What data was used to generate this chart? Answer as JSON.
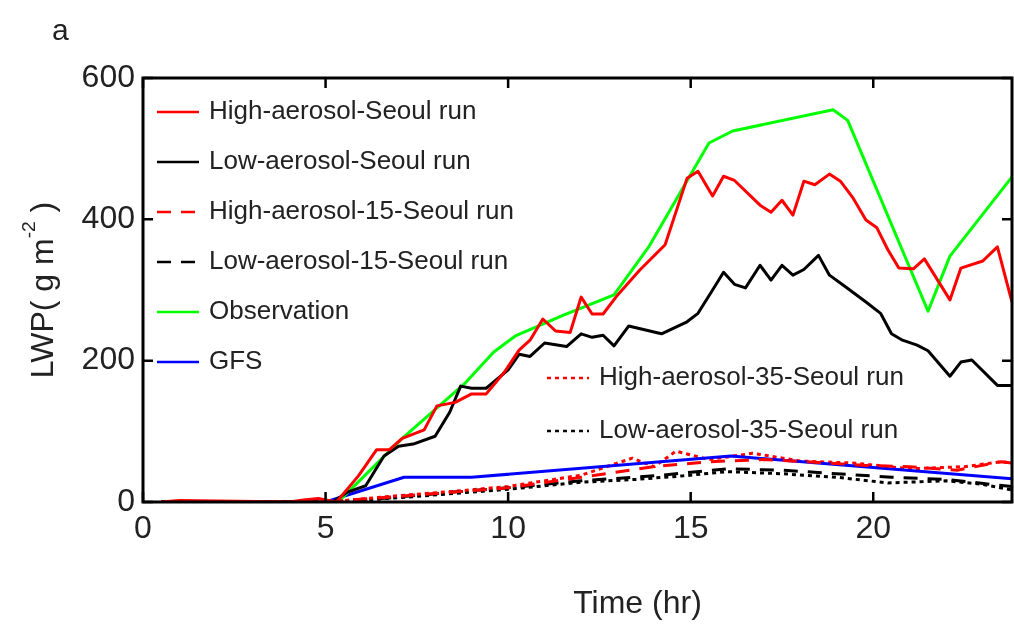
{
  "chart_data": {
    "type": "line",
    "title": "a",
    "xlabel": "Time (hr)",
    "ylabel": "LWP( g m$^{-2}$ )",
    "xlim": [
      0,
      23.8
    ],
    "ylim": [
      0,
      600
    ],
    "xticks": [
      0,
      5,
      10,
      15,
      20
    ],
    "yticks": [
      0,
      200,
      400,
      600
    ],
    "grid": false,
    "legend": "top left",
    "marker": "none",
    "series": [
      {
        "name": "High-aerosol-Seoul run",
        "color": "#ff0000",
        "line_style": "solid",
        "x": [
          0.5,
          1,
          4,
          4.4,
          4.8,
          5.3,
          5.9,
          6.4,
          6.75,
          7.1,
          7.7,
          8.05,
          8.55,
          9.0,
          9.4,
          9.9,
          10.3,
          10.6,
          10.95,
          11.3,
          11.7,
          12.0,
          12.3,
          12.6,
          13.0,
          13.6,
          14.3,
          14.9,
          15.2,
          15.6,
          15.9,
          16.2,
          16.9,
          17.2,
          17.5,
          17.8,
          18.1,
          18.4,
          18.8,
          19.1,
          19.45,
          19.8,
          20.1,
          20.4,
          20.7,
          21.1,
          21.4,
          22.1,
          22.4,
          23.0,
          23.4,
          23.8
        ],
        "values": [
          0,
          2,
          0,
          3,
          5,
          0,
          37,
          74,
          74,
          90,
          102,
          136,
          141,
          153,
          153,
          184,
          215,
          229,
          259,
          242,
          240,
          290,
          266,
          266,
          293,
          328,
          364,
          458,
          468,
          433,
          461,
          455,
          420,
          410,
          427,
          406,
          454,
          449,
          464,
          454,
          430,
          399,
          388,
          357,
          331,
          330,
          344,
          286,
          331,
          341,
          361,
          283
        ]
      },
      {
        "name": "Low-aerosol-Seoul run",
        "color": "#000000",
        "line_style": "solid",
        "x": [
          0.5,
          1,
          2,
          3,
          4,
          5.2,
          5.6,
          6.1,
          6.6,
          7.0,
          7.4,
          8.0,
          8.4,
          8.7,
          9.0,
          9.4,
          10.0,
          10.3,
          10.6,
          11.0,
          11.6,
          12.0,
          12.3,
          12.6,
          12.9,
          13.3,
          14.2,
          14.9,
          15.2,
          15.6,
          15.9,
          16.2,
          16.5,
          16.9,
          17.2,
          17.5,
          17.8,
          18.1,
          18.5,
          18.8,
          19.2,
          19.8,
          20.2,
          20.5,
          20.8,
          21.2,
          21.5,
          22.1,
          22.4,
          22.7,
          23.4,
          23.8
        ],
        "values": [
          0,
          0,
          0,
          0,
          0,
          0,
          14,
          23,
          65,
          79,
          82,
          93,
          127,
          164,
          161,
          161,
          187,
          209,
          206,
          225,
          220,
          238,
          233,
          236,
          221,
          249,
          238,
          255,
          267,
          300,
          325,
          308,
          303,
          335,
          314,
          335,
          321,
          329,
          349,
          321,
          306,
          283,
          267,
          238,
          229,
          222,
          214,
          178,
          198,
          201,
          165,
          165
        ]
      },
      {
        "name": "High-aerosol-15-Seoul run",
        "color": "#ff0000",
        "line_style": "dashed",
        "x": [
          0.5,
          5.0,
          5.5,
          7.0,
          8.5,
          10.0,
          12.0,
          14.0,
          15.5,
          17.0,
          18.5,
          19.7,
          21.0,
          22.3,
          23.5,
          23.8
        ],
        "values": [
          0,
          0,
          2,
          8,
          14,
          20,
          35,
          50,
          57,
          60,
          56,
          52,
          50,
          45,
          57,
          55
        ]
      },
      {
        "name": "Low-aerosol-15-Seoul run",
        "color": "#000000",
        "line_style": "dashed",
        "x": [
          0.5,
          5.0,
          5.5,
          7.0,
          8.5,
          10.0,
          12.0,
          14.0,
          16.0,
          17.5,
          19.0,
          20.5,
          22.0,
          23.4,
          23.8
        ],
        "values": [
          0,
          0,
          1,
          7,
          14,
          20,
          30,
          37,
          47,
          45,
          40,
          35,
          32,
          24,
          22
        ]
      },
      {
        "name": "Observation",
        "color": "#00ff00",
        "line_style": "solid",
        "x": [
          5.4,
          7.1,
          8.8,
          9.6,
          10.2,
          11.5,
          12.9,
          13.85,
          15.5,
          16.15,
          18.9,
          19.3,
          21.5,
          22.1,
          23.8
        ],
        "values": [
          3,
          90,
          167,
          212,
          235,
          264,
          293,
          361,
          508,
          525,
          555,
          540,
          270,
          348,
          460
        ]
      },
      {
        "name": "GFS",
        "color": "#0000ff",
        "line_style": "solid",
        "x": [
          5.0,
          7.15,
          9.0,
          16.1,
          23.8
        ],
        "values": [
          0,
          35,
          35,
          65,
          33
        ]
      },
      {
        "name": "High-aerosol-35-Seoul run",
        "color": "#ff0000",
        "line_style": "dotted",
        "x": [
          0.5,
          5.0,
          5.5,
          7.0,
          8.5,
          10.0,
          12.0,
          13.4,
          14.0,
          14.6,
          15.5,
          16.7,
          18.0,
          19.5,
          21.0,
          22.5,
          23.5,
          23.8
        ],
        "values": [
          0,
          0,
          2,
          9,
          15,
          22,
          38,
          62,
          50,
          72,
          60,
          69,
          58,
          55,
          47,
          50,
          57,
          55
        ]
      },
      {
        "name": "Low-aerosol-35-Seoul run",
        "color": "#000000",
        "line_style": "dotted",
        "x": [
          0.5,
          5.0,
          5.5,
          7.0,
          8.5,
          10.0,
          12.0,
          13.5,
          14.8,
          16.0,
          17.5,
          19.0,
          20.4,
          22.0,
          23.0,
          23.8
        ],
        "values": [
          0,
          0,
          1,
          6,
          12,
          18,
          28,
          32,
          37,
          43,
          40,
          35,
          27,
          30,
          25,
          17
        ]
      }
    ]
  }
}
